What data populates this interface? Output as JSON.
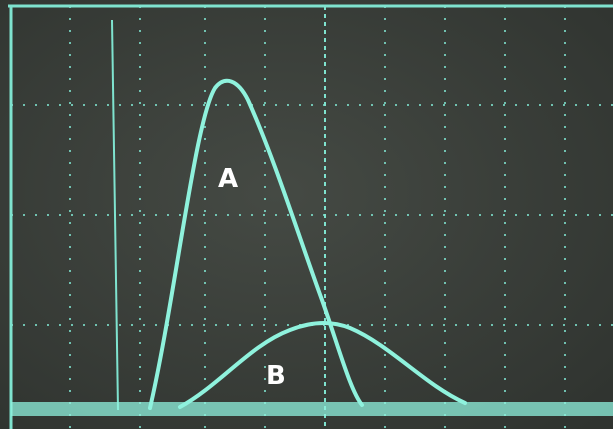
{
  "labels": {
    "a": "A",
    "b": "B"
  }
}
